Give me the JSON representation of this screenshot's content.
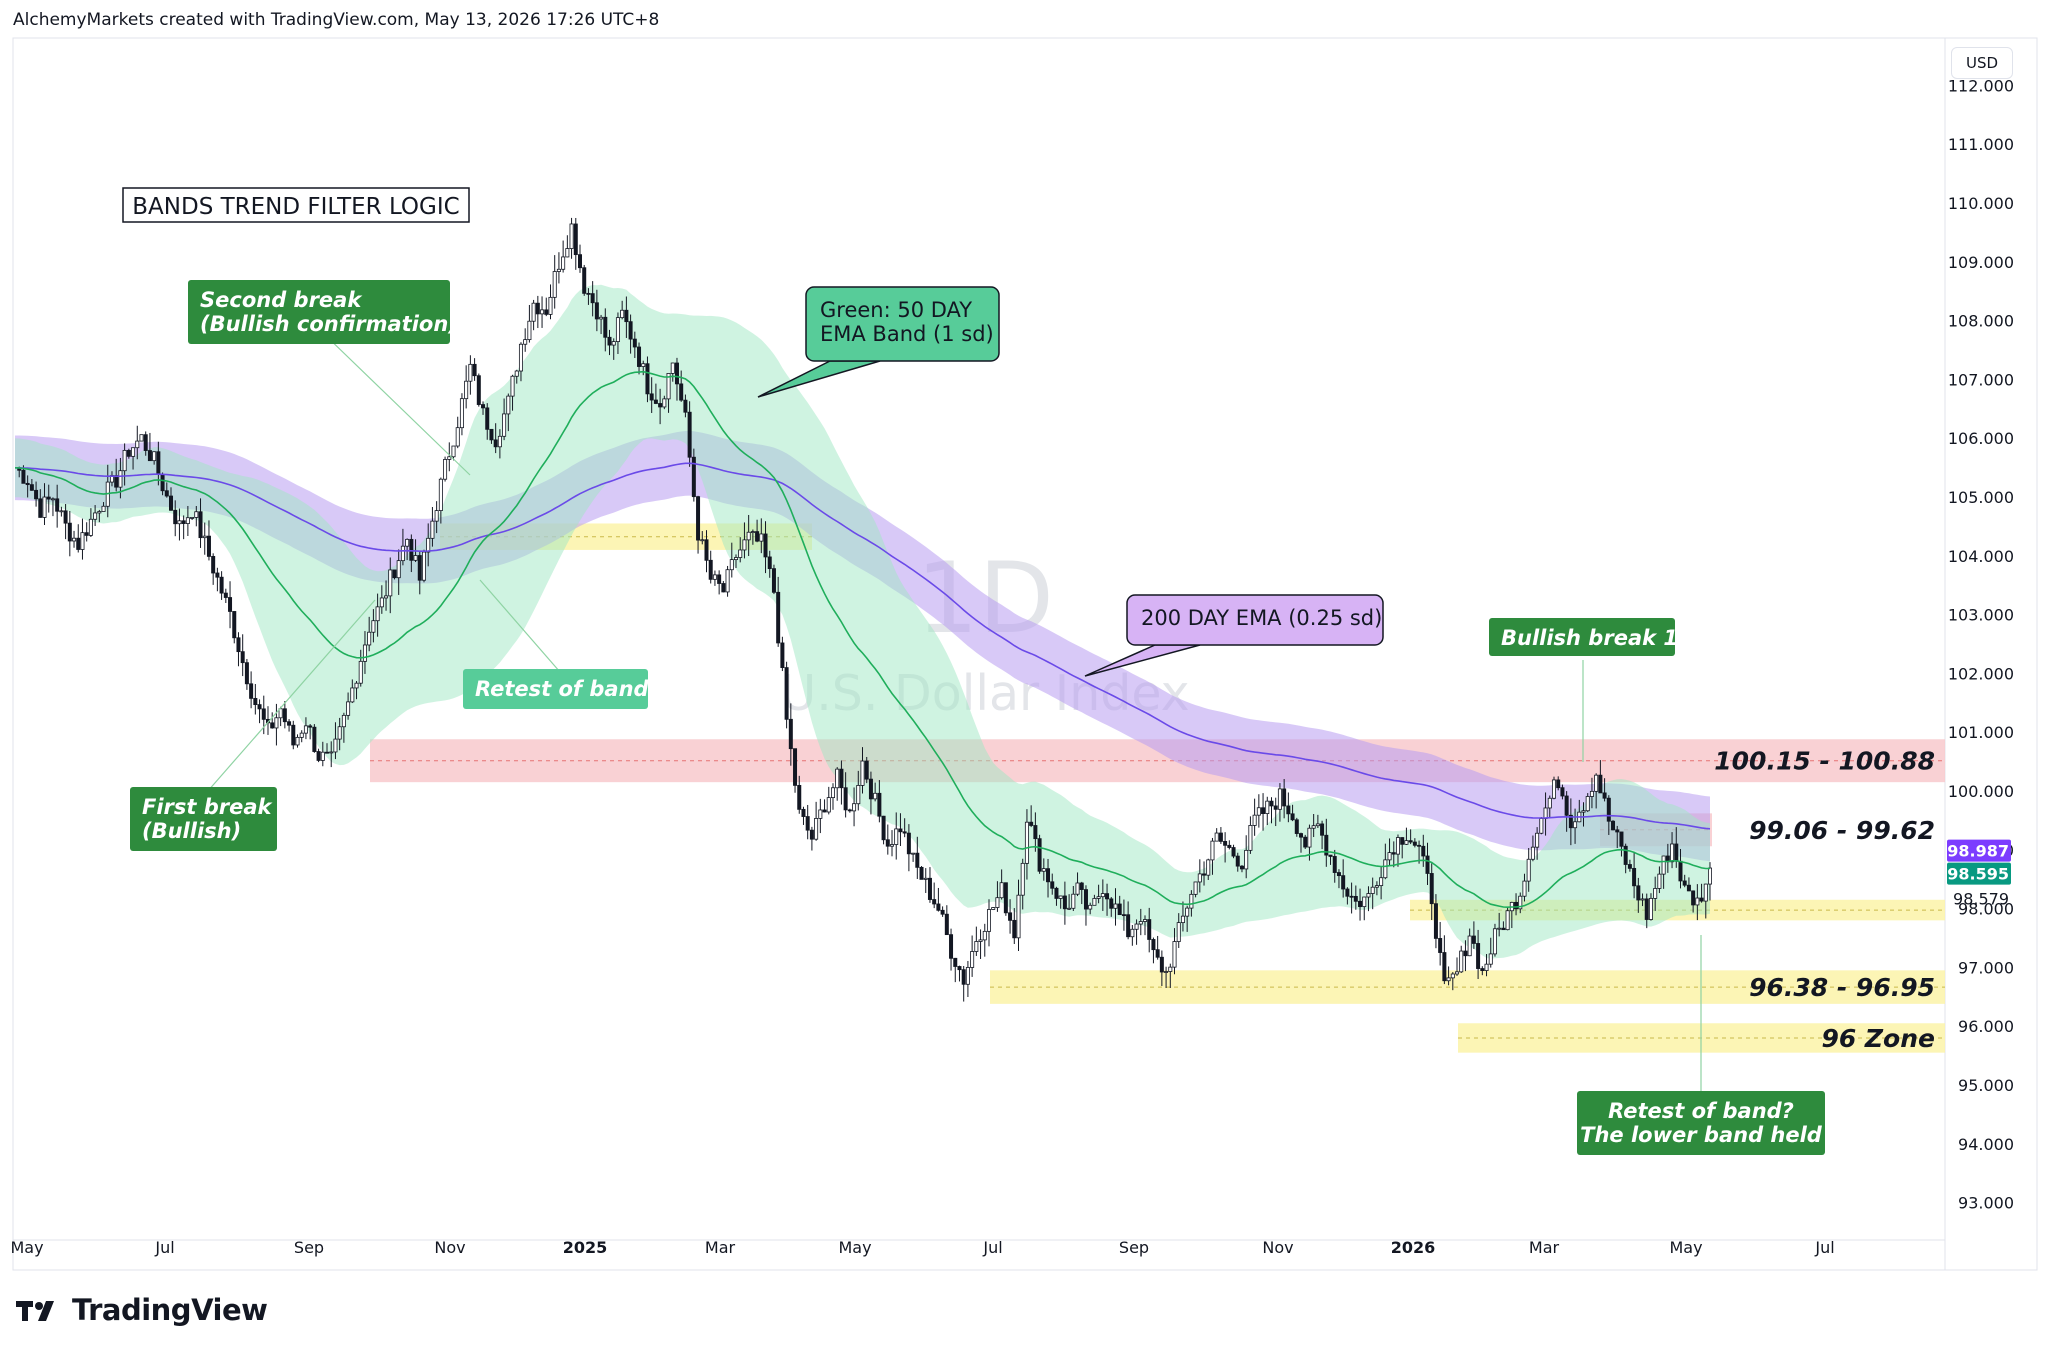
{
  "header": {
    "credit": "AlchemyMarkets created with TradingView.com, May 13, 2026 17:26 UTC+8"
  },
  "currency": "USD",
  "footer": {
    "brand": "TradingView"
  },
  "watermark": {
    "interval": "1D",
    "symbol": "U.S. Dollar Index"
  },
  "title_box": "BANDS TREND FILTER LOGIC",
  "colors": {
    "up": "#131722",
    "down": "#131722",
    "green_band": "#9fe7c4",
    "green_line": "#1fae5b",
    "purple_band": "#b89cf0",
    "purple_line": "#6a4ae8",
    "red_zone": "#f8c9cc",
    "yellow_zone": "#fbf3a8",
    "label_green": "#2e8b3d",
    "callout_green": "#57cc99",
    "callout_purple": "#d7b3f5",
    "price_purple": "#7c3cff",
    "price_green": "#089981"
  },
  "chart_data": {
    "type": "candlestick",
    "title": "U.S. Dollar Index",
    "interval": "1D",
    "y_ticks": [
      "112.000",
      "111.000",
      "110.000",
      "109.000",
      "108.000",
      "107.000",
      "106.000",
      "105.000",
      "104.000",
      "103.000",
      "102.000",
      "101.000",
      "100.000",
      "99.000",
      "98.000",
      "97.000",
      "96.000",
      "95.000",
      "94.000",
      "93.000"
    ],
    "x_ticks": [
      {
        "label": "May",
        "bold": false
      },
      {
        "label": "Jul",
        "bold": false
      },
      {
        "label": "Sep",
        "bold": false
      },
      {
        "label": "Nov",
        "bold": false
      },
      {
        "label": "2025",
        "bold": true
      },
      {
        "label": "Mar",
        "bold": false
      },
      {
        "label": "May",
        "bold": false
      },
      {
        "label": "Jul",
        "bold": false
      },
      {
        "label": "Sep",
        "bold": false
      },
      {
        "label": "Nov",
        "bold": false
      },
      {
        "label": "2026",
        "bold": true
      },
      {
        "label": "Mar",
        "bold": false
      },
      {
        "label": "May",
        "bold": false
      },
      {
        "label": "Jul",
        "bold": false
      }
    ],
    "price_labels": [
      {
        "value": "98.987",
        "color": "#7c3cff"
      },
      {
        "value": "98.595",
        "color": "#089981"
      },
      {
        "value": "98.579",
        "color": "none"
      }
    ],
    "zones": [
      {
        "label": "100.15 - 100.88",
        "low": 100.15,
        "high": 100.88,
        "kind": "red"
      },
      {
        "label": "99.06 - 99.62",
        "low": 99.06,
        "high": 99.62,
        "kind": "red"
      },
      {
        "label": "",
        "low": 97.8,
        "high": 98.15,
        "kind": "yellow"
      },
      {
        "label": "96.38 - 96.95",
        "low": 96.38,
        "high": 96.95,
        "kind": "yellow"
      },
      {
        "label": "96 Zone",
        "low": 95.55,
        "high": 96.05,
        "kind": "yellow"
      },
      {
        "label": "",
        "low": 104.1,
        "high": 104.55,
        "kind": "yellow"
      }
    ],
    "annotations": [
      "Second break\n(Bullish confirmation)",
      "First break\n(Bullish)",
      "Retest of band",
      "Bullish break 1",
      "Retest of band?\nThe lower band held"
    ],
    "callouts": [
      "Green: 50 DAY\nEMA Band (1 sd)",
      "200 DAY EMA (0.25 sd)"
    ],
    "close_path": [
      [
        0,
        105.5
      ],
      [
        3,
        105.3
      ],
      [
        6,
        104.8
      ],
      [
        9,
        105.0
      ],
      [
        12,
        104.5
      ],
      [
        15,
        104.2
      ],
      [
        18,
        104.6
      ],
      [
        21,
        105.0
      ],
      [
        24,
        105.3
      ],
      [
        27,
        105.8
      ],
      [
        30,
        106.0
      ],
      [
        33,
        105.6
      ],
      [
        36,
        105.0
      ],
      [
        39,
        104.5
      ],
      [
        42,
        104.8
      ],
      [
        45,
        104.2
      ],
      [
        48,
        103.6
      ],
      [
        51,
        103.0
      ],
      [
        54,
        102.2
      ],
      [
        57,
        101.5
      ],
      [
        60,
        101.0
      ],
      [
        63,
        101.4
      ],
      [
        66,
        100.8
      ],
      [
        69,
        101.2
      ],
      [
        72,
        100.6
      ],
      [
        75,
        100.5
      ],
      [
        78,
        101.2
      ],
      [
        81,
        102.0
      ],
      [
        84,
        102.8
      ],
      [
        87,
        103.2
      ],
      [
        90,
        103.8
      ],
      [
        93,
        104.3
      ],
      [
        96,
        103.6
      ],
      [
        99,
        104.6
      ],
      [
        102,
        105.5
      ],
      [
        105,
        106.3
      ],
      [
        108,
        107.2
      ],
      [
        111,
        106.4
      ],
      [
        114,
        106.0
      ],
      [
        117,
        106.6
      ],
      [
        120,
        107.6
      ],
      [
        123,
        108.3
      ],
      [
        126,
        108.2
      ],
      [
        129,
        109.0
      ],
      [
        132,
        109.6
      ],
      [
        135,
        108.6
      ],
      [
        138,
        108.2
      ],
      [
        141,
        107.5
      ],
      [
        144,
        108.1
      ],
      [
        147,
        107.6
      ],
      [
        150,
        106.9
      ],
      [
        153,
        106.6
      ],
      [
        156,
        107.3
      ],
      [
        159,
        106.3
      ],
      [
        162,
        104.4
      ],
      [
        165,
        103.6
      ],
      [
        168,
        103.4
      ],
      [
        171,
        104.0
      ],
      [
        174,
        104.3
      ],
      [
        177,
        104.2
      ],
      [
        180,
        103.4
      ],
      [
        183,
        101.2
      ],
      [
        186,
        99.6
      ],
      [
        189,
        99.2
      ],
      [
        192,
        99.8
      ],
      [
        195,
        100.2
      ],
      [
        198,
        99.6
      ],
      [
        201,
        100.5
      ],
      [
        204,
        99.8
      ],
      [
        207,
        99.1
      ],
      [
        210,
        99.4
      ],
      [
        213,
        98.8
      ],
      [
        216,
        98.4
      ],
      [
        219,
        98.0
      ],
      [
        222,
        97.3
      ],
      [
        225,
        96.8
      ],
      [
        228,
        97.5
      ],
      [
        231,
        97.9
      ],
      [
        234,
        98.3
      ],
      [
        237,
        97.6
      ],
      [
        240,
        99.6
      ],
      [
        243,
        98.8
      ],
      [
        246,
        98.4
      ],
      [
        249,
        98.0
      ],
      [
        252,
        98.3
      ],
      [
        255,
        97.9
      ],
      [
        258,
        98.4
      ],
      [
        261,
        98.0
      ],
      [
        264,
        97.6
      ],
      [
        267,
        97.9
      ],
      [
        270,
        97.2
      ],
      [
        273,
        96.9
      ],
      [
        276,
        97.6
      ],
      [
        279,
        98.3
      ],
      [
        282,
        98.7
      ],
      [
        285,
        99.2
      ],
      [
        288,
        99.0
      ],
      [
        291,
        98.8
      ],
      [
        294,
        99.5
      ],
      [
        297,
        99.7
      ],
      [
        300,
        99.9
      ],
      [
        303,
        99.6
      ],
      [
        306,
        99.1
      ],
      [
        309,
        99.4
      ],
      [
        312,
        98.9
      ],
      [
        315,
        98.4
      ],
      [
        318,
        98.1
      ],
      [
        321,
        98.2
      ],
      [
        324,
        98.7
      ],
      [
        327,
        99.1
      ],
      [
        330,
        99.3
      ],
      [
        333,
        99.0
      ],
      [
        336,
        98.2
      ],
      [
        339,
        96.6
      ],
      [
        342,
        96.9
      ],
      [
        345,
        97.6
      ],
      [
        348,
        96.9
      ],
      [
        351,
        97.5
      ],
      [
        354,
        97.9
      ],
      [
        357,
        98.3
      ],
      [
        360,
        99.2
      ],
      [
        363,
        99.7
      ],
      [
        366,
        100.2
      ],
      [
        369,
        99.5
      ],
      [
        372,
        99.8
      ],
      [
        375,
        100.3
      ],
      [
        378,
        99.5
      ],
      [
        381,
        99.0
      ],
      [
        384,
        98.4
      ],
      [
        387,
        97.9
      ],
      [
        390,
        98.6
      ],
      [
        393,
        99.1
      ],
      [
        396,
        98.3
      ],
      [
        399,
        98.1
      ],
      [
        402,
        98.6
      ]
    ]
  }
}
